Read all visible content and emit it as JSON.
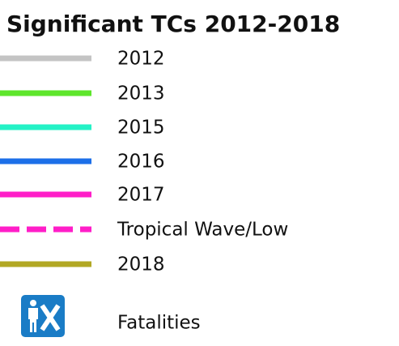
{
  "title": "Significant TCs 2012-2018",
  "legend": {
    "items": [
      {
        "label": "2012",
        "color": "#c4c4c4",
        "style": "solid"
      },
      {
        "label": "2013",
        "color": "#5ee62c",
        "style": "solid"
      },
      {
        "label": "2015",
        "color": "#24f2c6",
        "style": "solid"
      },
      {
        "label": "2016",
        "color": "#1c6fe8",
        "style": "solid"
      },
      {
        "label": "2017",
        "color": "#ff1ec8",
        "style": "solid"
      },
      {
        "label": "Tropical Wave/Low",
        "color": "#ff1ec8",
        "style": "dashed"
      },
      {
        "label": "2018",
        "color": "#b2a824",
        "style": "solid"
      }
    ]
  },
  "icon_item": {
    "label": "Fatalities"
  }
}
